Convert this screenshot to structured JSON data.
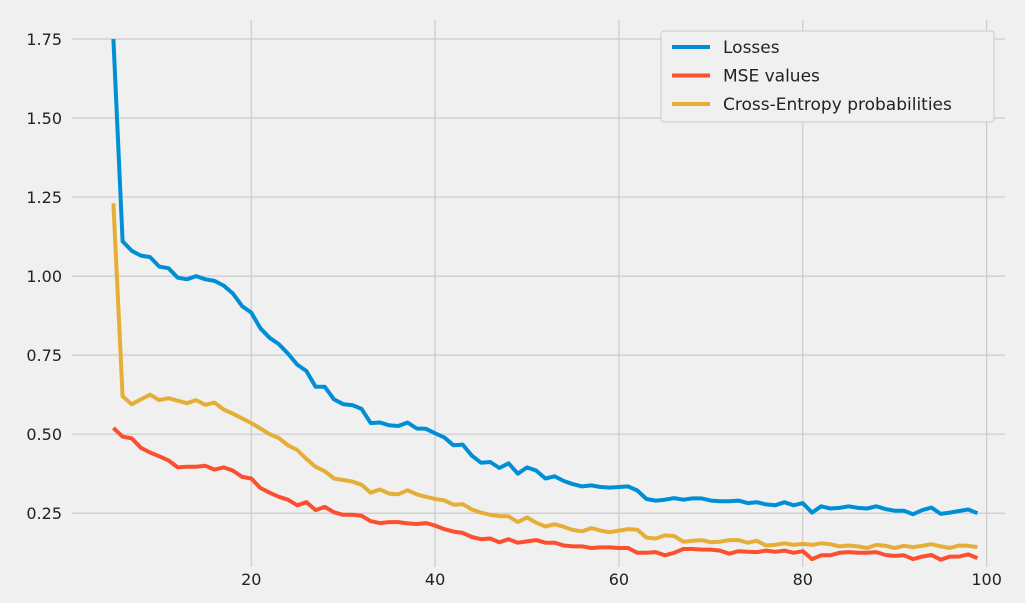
{
  "chart_data": {
    "type": "line",
    "title": "",
    "xlabel": "",
    "ylabel": "",
    "xlim": [
      0.5,
      102
    ],
    "ylim": [
      0.08,
      1.81
    ],
    "x_ticks": [
      20,
      40,
      60,
      80,
      100
    ],
    "x_tick_labels": [
      "20",
      "40",
      "60",
      "80",
      "100"
    ],
    "y_ticks": [
      0.25,
      0.5,
      0.75,
      1.0,
      1.25,
      1.5,
      1.75
    ],
    "y_tick_labels": [
      "0.25",
      "0.50",
      "0.75",
      "1.00",
      "1.25",
      "1.50",
      "1.75"
    ],
    "grid": true,
    "legend_position": "top-right",
    "x": [
      5,
      6,
      7,
      8,
      9,
      10,
      11,
      12,
      13,
      14,
      15,
      16,
      17,
      18,
      19,
      20,
      21,
      22,
      23,
      24,
      25,
      26,
      27,
      28,
      29,
      30,
      31,
      32,
      33,
      34,
      35,
      36,
      37,
      38,
      39,
      40,
      41,
      42,
      43,
      44,
      45,
      46,
      47,
      48,
      49,
      50,
      51,
      52,
      53,
      54,
      55,
      56,
      57,
      58,
      59,
      60,
      61,
      62,
      63,
      64,
      65,
      66,
      67,
      68,
      69,
      70,
      71,
      72,
      73,
      74,
      75,
      76,
      77,
      78,
      79,
      80,
      81,
      82,
      83,
      84,
      85,
      86,
      87,
      88,
      89,
      90,
      91,
      92,
      93,
      94,
      95,
      96,
      97,
      98,
      99
    ],
    "series": [
      {
        "name": "Losses",
        "color": "#008fd5",
        "values": [
          1.75,
          1.11,
          1.08,
          1.065,
          1.06,
          1.03,
          1.025,
          0.995,
          0.99,
          1.0,
          0.99,
          0.985,
          0.97,
          0.945,
          0.905,
          0.885,
          0.835,
          0.805,
          0.785,
          0.755,
          0.72,
          0.7,
          0.65,
          0.65,
          0.61,
          0.595,
          0.592,
          0.58,
          0.535,
          0.537,
          0.528,
          0.526,
          0.537,
          0.518,
          0.517,
          0.503,
          0.49,
          0.465,
          0.467,
          0.432,
          0.41,
          0.412,
          0.393,
          0.408,
          0.375,
          0.395,
          0.385,
          0.36,
          0.367,
          0.352,
          0.342,
          0.335,
          0.338,
          0.333,
          0.331,
          0.333,
          0.335,
          0.322,
          0.295,
          0.29,
          0.293,
          0.298,
          0.293,
          0.297,
          0.297,
          0.29,
          0.288,
          0.288,
          0.29,
          0.282,
          0.285,
          0.278,
          0.275,
          0.285,
          0.275,
          0.282,
          0.252,
          0.272,
          0.265,
          0.267,
          0.272,
          0.267,
          0.265,
          0.272,
          0.263,
          0.258,
          0.258,
          0.247,
          0.26,
          0.268,
          0.248,
          0.252,
          0.257,
          0.262,
          0.25
        ]
      },
      {
        "name": "MSE values",
        "color": "#fc4f30",
        "values": [
          0.52,
          0.492,
          0.487,
          0.457,
          0.442,
          0.43,
          0.417,
          0.395,
          0.397,
          0.397,
          0.4,
          0.388,
          0.395,
          0.385,
          0.365,
          0.36,
          0.33,
          0.315,
          0.302,
          0.293,
          0.275,
          0.285,
          0.26,
          0.27,
          0.253,
          0.245,
          0.245,
          0.242,
          0.225,
          0.219,
          0.222,
          0.222,
          0.218,
          0.216,
          0.219,
          0.211,
          0.2,
          0.192,
          0.188,
          0.175,
          0.168,
          0.17,
          0.158,
          0.168,
          0.157,
          0.161,
          0.165,
          0.157,
          0.157,
          0.148,
          0.145,
          0.145,
          0.14,
          0.142,
          0.142,
          0.14,
          0.14,
          0.125,
          0.125,
          0.127,
          0.117,
          0.125,
          0.137,
          0.137,
          0.135,
          0.135,
          0.132,
          0.122,
          0.13,
          0.128,
          0.127,
          0.132,
          0.128,
          0.132,
          0.125,
          0.13,
          0.105,
          0.117,
          0.117,
          0.125,
          0.127,
          0.125,
          0.125,
          0.127,
          0.118,
          0.115,
          0.117,
          0.105,
          0.113,
          0.118,
          0.103,
          0.113,
          0.113,
          0.12,
          0.108
        ]
      },
      {
        "name": "Cross-Entropy probabilities",
        "color": "#e5ae38",
        "values": [
          1.23,
          0.62,
          0.595,
          0.61,
          0.625,
          0.608,
          0.614,
          0.606,
          0.598,
          0.608,
          0.593,
          0.6,
          0.578,
          0.565,
          0.55,
          0.535,
          0.518,
          0.5,
          0.488,
          0.465,
          0.45,
          0.422,
          0.397,
          0.383,
          0.36,
          0.355,
          0.35,
          0.34,
          0.315,
          0.325,
          0.312,
          0.31,
          0.323,
          0.31,
          0.302,
          0.295,
          0.291,
          0.277,
          0.279,
          0.262,
          0.252,
          0.245,
          0.241,
          0.24,
          0.222,
          0.237,
          0.22,
          0.208,
          0.215,
          0.207,
          0.197,
          0.193,
          0.203,
          0.195,
          0.19,
          0.195,
          0.2,
          0.198,
          0.173,
          0.17,
          0.18,
          0.178,
          0.16,
          0.163,
          0.165,
          0.158,
          0.16,
          0.165,
          0.165,
          0.157,
          0.163,
          0.148,
          0.15,
          0.155,
          0.15,
          0.153,
          0.15,
          0.155,
          0.152,
          0.145,
          0.148,
          0.145,
          0.14,
          0.15,
          0.147,
          0.14,
          0.147,
          0.143,
          0.147,
          0.152,
          0.145,
          0.14,
          0.148,
          0.147,
          0.143
        ]
      }
    ]
  }
}
